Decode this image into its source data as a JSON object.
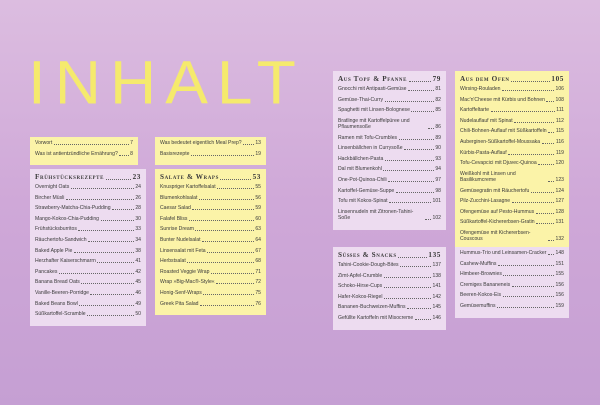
{
  "title": "Inhalt",
  "sections": [
    {
      "color": "#fbf3a8",
      "entries": [
        {
          "title": "Vorwort",
          "page": "7"
        },
        {
          "title": "Was ist antientzündliche Ernährung?",
          "page": "8"
        }
      ]
    },
    {
      "color": "#fbf3a8",
      "entries": [
        {
          "title": "Was bedeutet eigentlich Meal Prep?",
          "page": "13"
        },
        {
          "title": "Basisrezepte",
          "page": "19"
        }
      ]
    },
    {
      "heading": "Frühstücksrezepte",
      "page": "23",
      "color": "#eddcf0",
      "entries": [
        {
          "title": "Overnight Oats",
          "page": "24"
        },
        {
          "title": "Bircher Müsli",
          "page": "26"
        },
        {
          "title": "Strawberry-Matcha-Chia-Pudding",
          "page": "28"
        },
        {
          "title": "Mango-Kokos-Chia-Pudding",
          "page": "30"
        },
        {
          "title": "Frühstücksburritos",
          "page": "33"
        },
        {
          "title": "Räuchertofu-Sandwich",
          "page": "34"
        },
        {
          "title": "Baked Apple Pie",
          "page": "38"
        },
        {
          "title": "Herzhafter Kaiserschmarrn",
          "page": "41"
        },
        {
          "title": "Pancakes",
          "page": "42"
        },
        {
          "title": "Banana Bread Oats",
          "page": "45"
        },
        {
          "title": "Vanille-Beeren-Porridge",
          "page": "46"
        },
        {
          "title": "Baked Beans Bowl",
          "page": "49"
        },
        {
          "title": "Süßkartoffel-Scramble",
          "page": "50"
        }
      ]
    },
    {
      "heading": "Salate & Wraps",
      "page": "53",
      "color": "#fbf3a8",
      "entries": [
        {
          "title": "Knuspriger Kartoffelsalat",
          "page": "55"
        },
        {
          "title": "Blumenkohlsalat",
          "page": "56"
        },
        {
          "title": "Caesar Salad",
          "page": "59"
        },
        {
          "title": "Falafel Bliss",
          "page": "60"
        },
        {
          "title": "Sunrise Dream",
          "page": "63"
        },
        {
          "title": "Bunter Nudelsalat",
          "page": "64"
        },
        {
          "title": "Linsensalat mit Feta",
          "page": "67"
        },
        {
          "title": "Herbstsalat",
          "page": "68"
        },
        {
          "title": "Roasted Veggie Wrap",
          "page": "71"
        },
        {
          "title": "Wrap »Big-Mac®-Style«",
          "page": "72"
        },
        {
          "title": "Honig-Senf-Wraps",
          "page": "75"
        },
        {
          "title": "Greek Pita Salad",
          "page": "76"
        }
      ]
    },
    {
      "heading": "Aus Topf & Pfanne",
      "page": "79",
      "color": "#eddcf0",
      "entries": [
        {
          "title": "Gnocchi mit Antipasti-Gemüse",
          "page": "81"
        },
        {
          "title": "Gemüse-Thai-Curry",
          "page": "82"
        },
        {
          "title": "Spaghetti mit Linsen-Bolognese",
          "page": "85"
        },
        {
          "title": "Bratlinge mit Kartoffelpüree und Pflaumensoße",
          "page": "86"
        },
        {
          "title": "Ramen mit Tofu-Crumbles",
          "page": "89"
        },
        {
          "title": "Linsenbällchen in Currysoße",
          "page": "90"
        },
        {
          "title": "Hackbällchen-Pasta",
          "page": "93"
        },
        {
          "title": "Dal mit Blumenkohl",
          "page": "94"
        },
        {
          "title": "One-Pot-Quinoa-Chili",
          "page": "97"
        },
        {
          "title": "Kartoffel-Gemüse-Suppe",
          "page": "98"
        },
        {
          "title": "Tofu mit Kokos-Spinat",
          "page": "101"
        },
        {
          "title": "Linsennudeln mit Zitronen-Tahini-Soße",
          "page": "102"
        }
      ]
    },
    {
      "heading": "Aus dem Ofen",
      "page": "105",
      "color": "#fbf3a8",
      "entries": [
        {
          "title": "Wirsing-Rouladen",
          "page": "106"
        },
        {
          "title": "Mac'n'Cheese mit Kürbis und Bohnen",
          "page": "108"
        },
        {
          "title": "Kartoffeltarte",
          "page": "111"
        },
        {
          "title": "Nudelauflauf mit Spinat",
          "page": "112"
        },
        {
          "title": "Chili-Bohnen-Auflauf mit Süßkartoffeln",
          "page": "115"
        },
        {
          "title": "Auberginen-Süßkartoffel-Moussaka",
          "page": "116"
        },
        {
          "title": "Kürbis-Pasta-Auflauf",
          "page": "119"
        },
        {
          "title": "Tofu-Cevapcici mit Djuvec-Quinoa",
          "page": "120"
        },
        {
          "title": "Weißkohl mit Linsen und Basilikumcreme",
          "page": "123"
        },
        {
          "title": "Gemüsegratin mit Räuchertofu",
          "page": "124"
        },
        {
          "title": "Pilz-Zucchini-Lasagne",
          "page": "127"
        },
        {
          "title": "Ofengemüse auf Pesto-Hummus",
          "page": "128"
        },
        {
          "title": "Süßkartoffel-Kichererbsen-Gratin",
          "page": "131"
        },
        {
          "title": "Ofengemüse mit Kichererbsen-Couscous",
          "page": "132"
        }
      ]
    },
    {
      "heading": "Süßes & Snacks",
      "page": "135",
      "color": "#eddcf0",
      "entries": [
        {
          "title": "Tahini-Cookie-Dough-Bites",
          "page": "137"
        },
        {
          "title": "Zimt-Apfel-Crumble",
          "page": "138"
        },
        {
          "title": "Schoko-Hirse-Cups",
          "page": "141"
        },
        {
          "title": "Hafer-Kokos-Riegel",
          "page": "142"
        },
        {
          "title": "Bananen-Buchweizen-Muffins",
          "page": "145"
        },
        {
          "title": "Gefüllte Kartoffeln mit Misocreme",
          "page": "146"
        }
      ]
    },
    {
      "color": "#eddcf0",
      "entries": [
        {
          "title": "Hummus-Trio und Leinsamen-Cracker",
          "page": "148"
        },
        {
          "title": "Cashew-Muffins",
          "page": "151"
        },
        {
          "title": "Himbeer-Brownies",
          "page": "155"
        },
        {
          "title": "Cremiges Bananeneis",
          "page": "156"
        },
        {
          "title": "Beeren-Kokos-Eis",
          "page": "156"
        },
        {
          "title": "Gemüsemuffins",
          "page": "159"
        }
      ]
    }
  ]
}
